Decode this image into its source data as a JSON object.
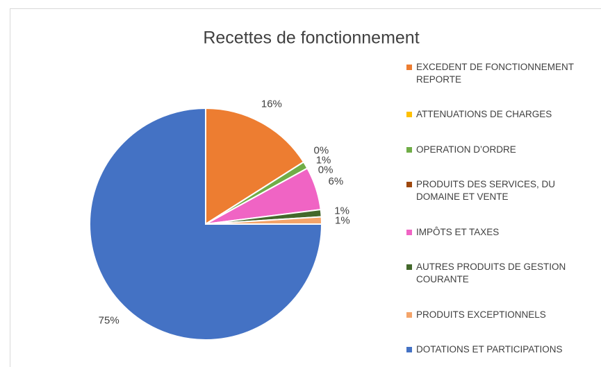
{
  "chart_data": {
    "type": "pie",
    "title": "Recettes de fonctionnement",
    "categories": [
      "EXCEDENT DE FONCTIONNEMENT REPORTE",
      "ATTENUATIONS DE CHARGES",
      "OPERATION D’ORDRE",
      "PRODUITS DES SERVICES, DU DOMAINE ET VENTE",
      "IMPÔTS ET TAXES",
      "AUTRES PRODUITS DE GESTION COURANTE",
      "PRODUITS EXCEPTIONNELS",
      "DOTATIONS ET PARTICIPATIONS"
    ],
    "values": [
      16,
      0,
      1,
      0,
      6,
      1,
      1,
      75
    ],
    "value_labels": [
      "16%",
      "0%",
      "1%",
      "0%",
      "6%",
      "1%",
      "1%",
      "75%"
    ],
    "colors": [
      "#ED7D31",
      "#FFC000",
      "#70AD47",
      "#9E480E",
      "#F064C4",
      "#43682B",
      "#F4A46A",
      "#4472C4"
    ],
    "legend": "right"
  }
}
